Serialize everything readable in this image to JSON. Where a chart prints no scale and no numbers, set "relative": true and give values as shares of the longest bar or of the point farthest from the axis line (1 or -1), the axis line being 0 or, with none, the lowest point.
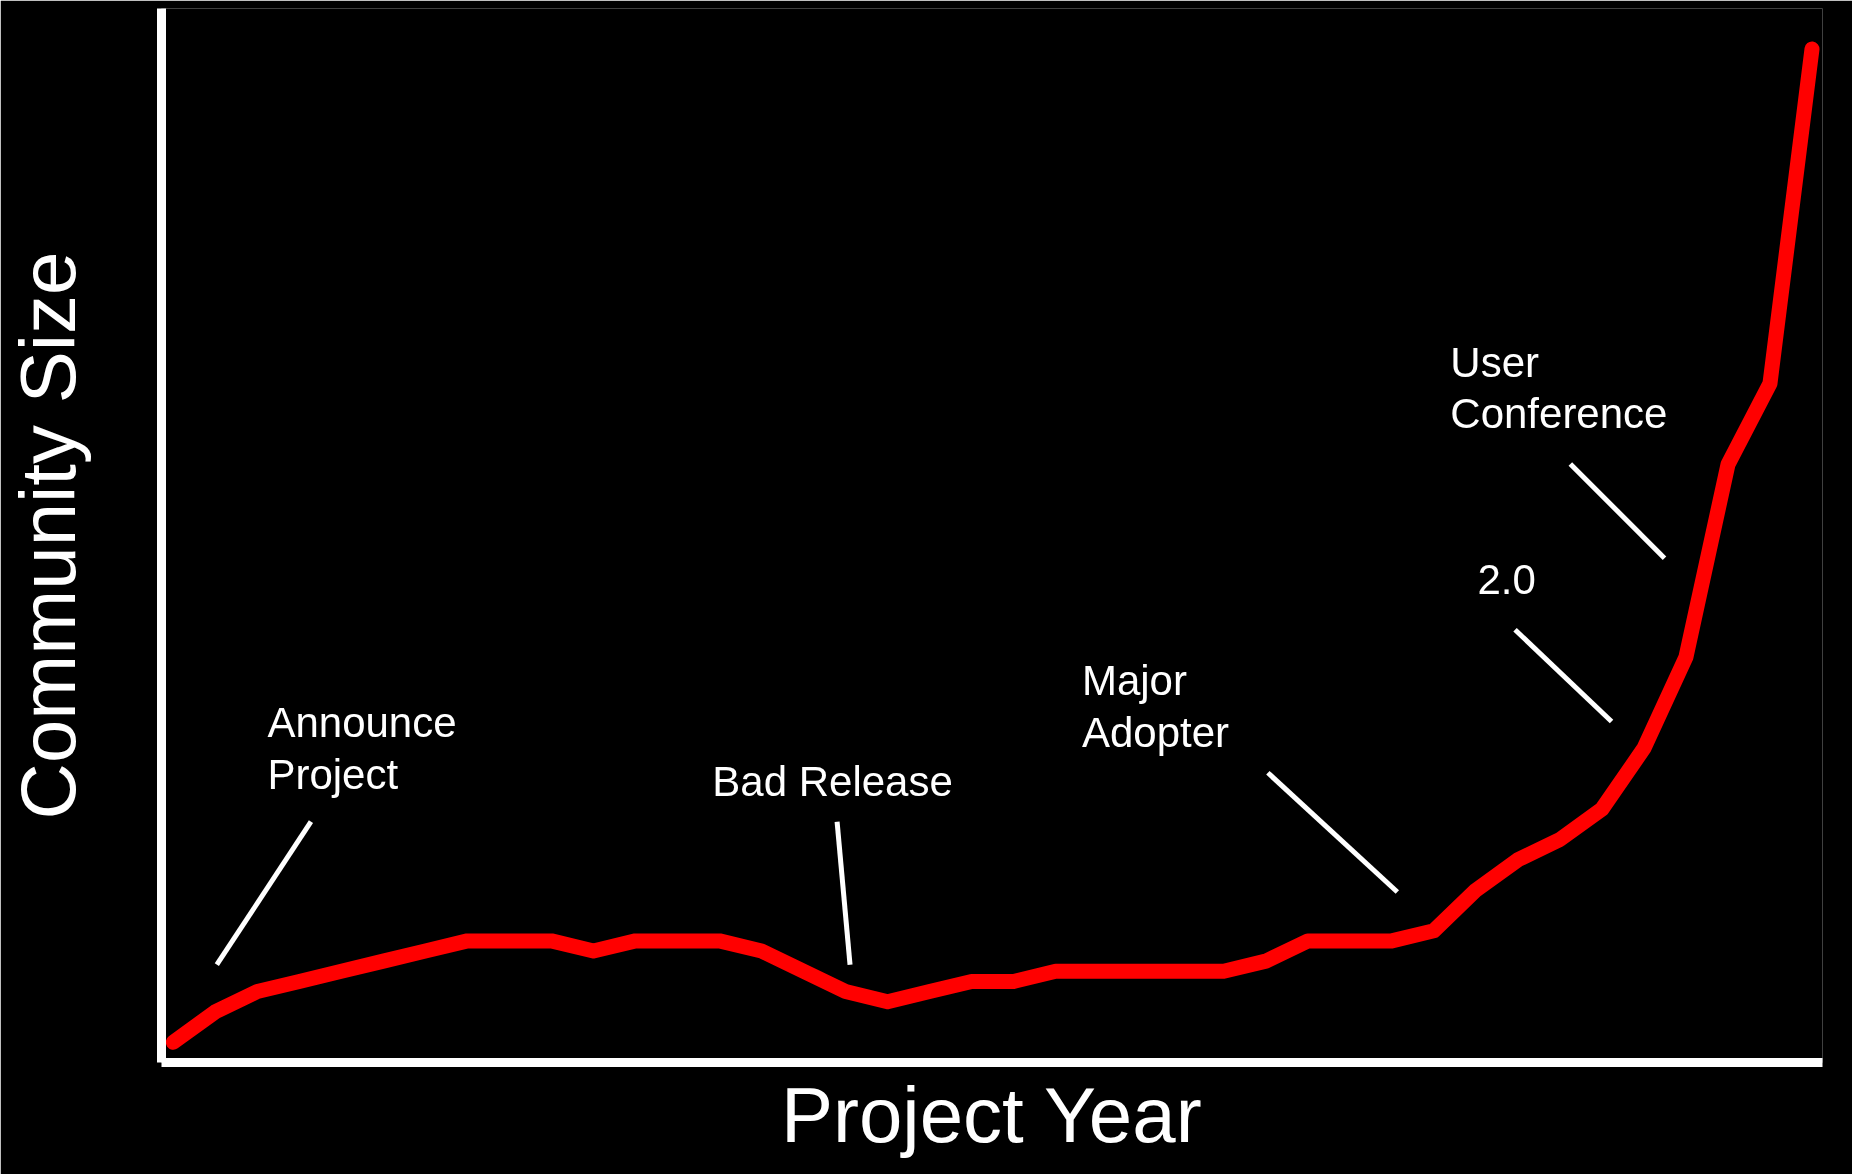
{
  "chart_data": {
    "type": "line",
    "relative": true,
    "xlabel": "Project Year",
    "ylabel": "Community Size",
    "line_style": "solid",
    "categories": [
      null,
      null,
      null,
      null,
      null,
      null,
      null,
      null,
      null,
      null,
      null,
      null,
      null,
      null,
      null,
      null,
      null,
      null,
      null,
      null,
      null,
      null,
      null,
      null,
      null,
      null,
      null,
      null,
      null,
      null,
      null,
      null,
      null,
      null,
      null,
      null,
      null,
      null,
      null,
      null
    ],
    "series": [
      {
        "color": "#ff0000",
        "values": [
          0.02,
          0.05,
          0.07,
          0.08,
          0.09,
          0.1,
          0.11,
          0.12,
          0.12,
          0.12,
          0.11,
          0.12,
          0.12,
          0.12,
          0.11,
          0.09,
          0.07,
          0.06,
          0.07,
          0.08,
          0.08,
          0.09,
          0.09,
          0.09,
          0.09,
          0.09,
          0.1,
          0.12,
          0.12,
          0.12,
          0.13,
          0.17,
          0.2,
          0.22,
          0.25,
          0.31,
          0.4,
          0.59,
          0.67,
          1.0
        ]
      }
    ],
    "annotations": [
      "Announce\nProject",
      "Bad Release",
      "Major\nAdopter",
      "2.0",
      "User\nConference"
    ]
  }
}
